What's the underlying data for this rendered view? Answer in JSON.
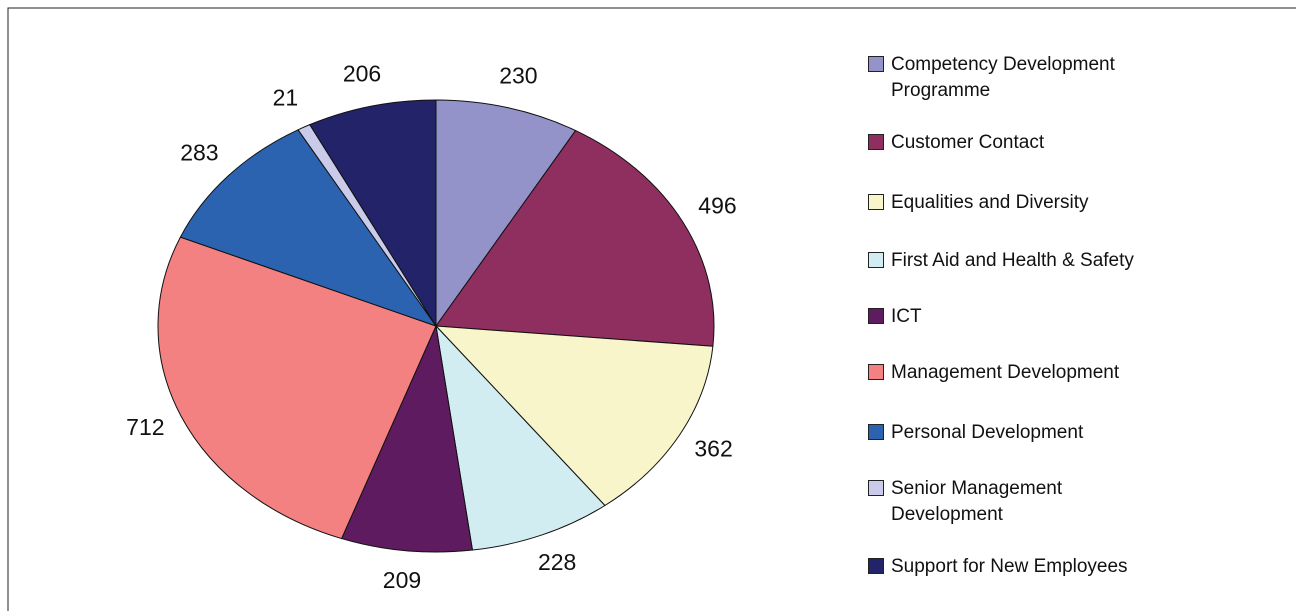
{
  "chart_data": {
    "type": "pie",
    "categories": [
      "Competency Development Programme",
      "Customer Contact",
      "Equalities and Diversity",
      "First Aid and Health & Safety",
      "ICT",
      "Management Development",
      "Personal Development",
      "Senior Management Development",
      "Support for New Employees"
    ],
    "values": [
      230,
      496,
      362,
      228,
      209,
      712,
      283,
      21,
      206
    ],
    "colors": [
      "#9393c9",
      "#8f2f5f",
      "#f8f5cb",
      "#d2edf1",
      "#5f1b5f",
      "#f38181",
      "#2b63b0",
      "#cacaea",
      "#23236a"
    ]
  }
}
